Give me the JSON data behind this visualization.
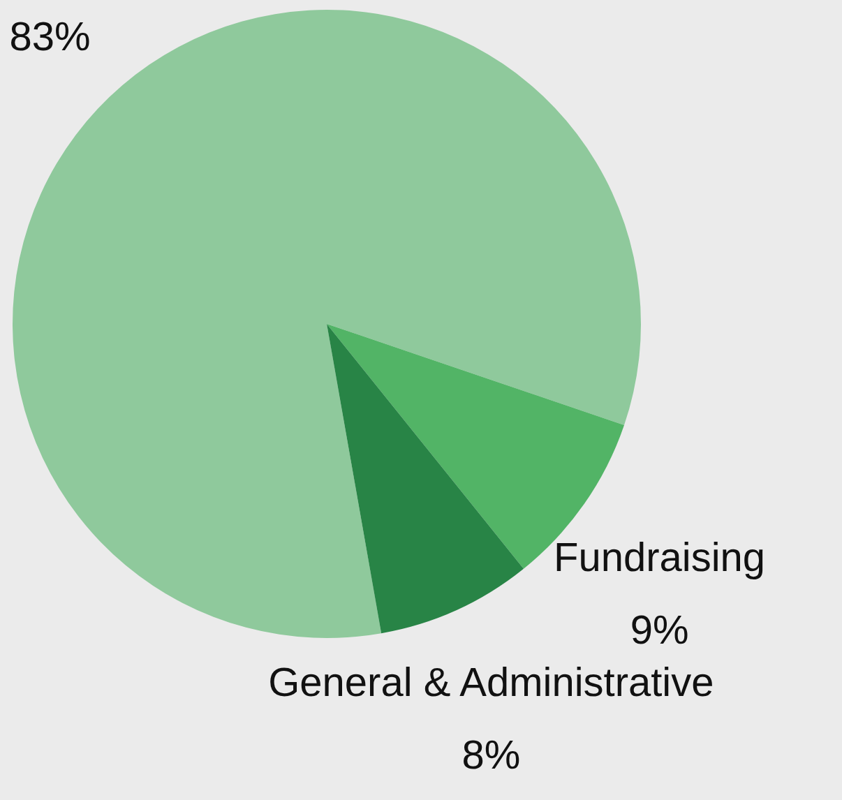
{
  "chart_data": {
    "type": "pie",
    "categories": [
      null,
      "Fundraising",
      "General & Administrative"
    ],
    "values": [
      83,
      9,
      8
    ],
    "colors": [
      "#8fc99c",
      "#52b466",
      "#288446"
    ],
    "value_labels": [
      "83%",
      "9%",
      "8%"
    ]
  }
}
